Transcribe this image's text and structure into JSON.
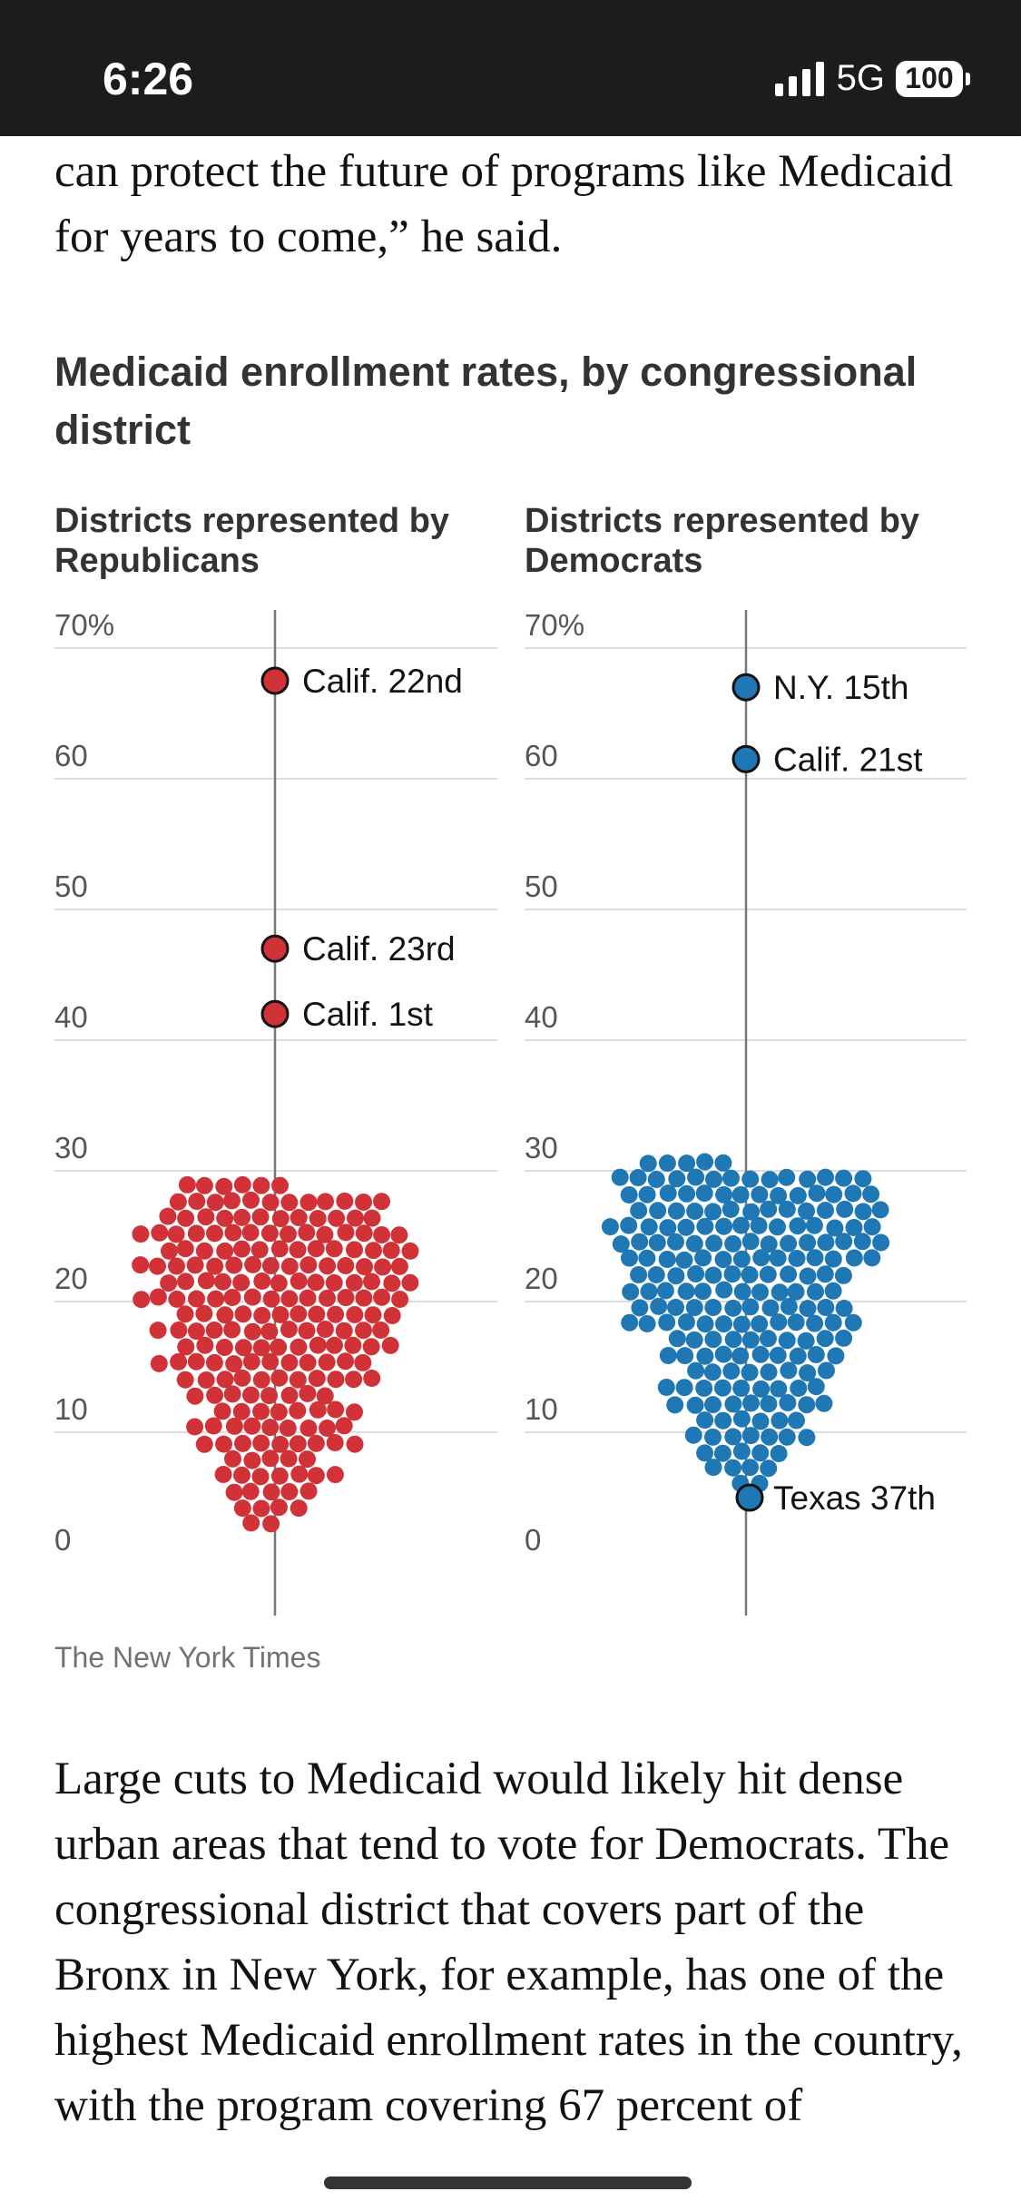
{
  "status_bar": {
    "time": "6:26",
    "network": "5G",
    "battery": "100"
  },
  "article": {
    "intro": "can protect the future of programs like Medicaid for years to come,” he said.",
    "after": "Large cuts to Medicaid would likely hit dense urban areas that tend to vote for Democrats. The congressional district that covers part of the Bronx in New York, for example, has one of the highest Medicaid enrollment rates in the country, with the program covering 67 percent of"
  },
  "chart_data": {
    "type": "scatter",
    "title": "Medicaid enrollment rates, by congressional district",
    "source": "The New York Times",
    "ylim": [
      0,
      70
    ],
    "yticks": [
      "70%",
      "60",
      "50",
      "40",
      "30",
      "20",
      "10",
      "0"
    ],
    "ytick_values": [
      70,
      60,
      50,
      40,
      30,
      20,
      10,
      0
    ],
    "grid": true,
    "panels": [
      {
        "name": "Districts represented by Republicans",
        "color": "#d03238",
        "count": 220,
        "range": [
          3,
          41
        ],
        "peak": 24,
        "labeled": [
          {
            "label": "Calif. 22nd",
            "value": 67.5
          },
          {
            "label": "Calif. 23rd",
            "value": 47
          },
          {
            "label": "Calif. 1st",
            "value": 42
          }
        ]
      },
      {
        "name": "Districts represented by Democrats",
        "color": "#1f77b4",
        "count": 210,
        "range": [
          6,
          57
        ],
        "peak": 26,
        "labeled": [
          {
            "label": "N.Y. 15th",
            "value": 67
          },
          {
            "label": "Calif. 21st",
            "value": 61.5
          },
          {
            "label": "Texas 37th",
            "value": 5
          }
        ]
      }
    ]
  }
}
